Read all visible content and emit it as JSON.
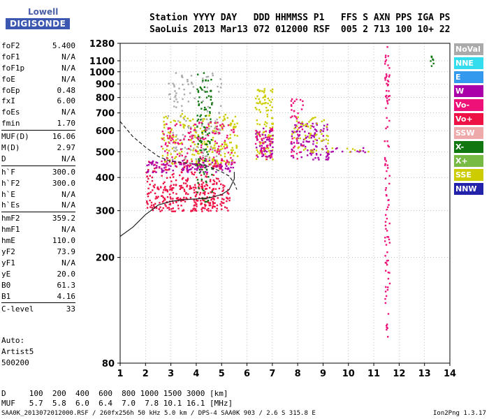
{
  "logo": {
    "line1": "Lowell",
    "line2": "DIGISONDE"
  },
  "header": {
    "line1": "Station YYYY DAY   DDD HHMMSS P1   FFS S AXN PPS IGA PS",
    "line2": "SaoLuis 2013 Mar13 072 012000 RSF  005 2 713 100 10+ 22"
  },
  "params": [
    {
      "name": "foF2",
      "value": "5.400"
    },
    {
      "name": "foF1",
      "value": "N/A"
    },
    {
      "name": "foF1p",
      "value": "N/A"
    },
    {
      "name": "foE",
      "value": "N/A"
    },
    {
      "name": "foEp",
      "value": "0.48"
    },
    {
      "name": "fxI",
      "value": "6.00"
    },
    {
      "name": "foEs",
      "value": "N/A"
    },
    {
      "name": "fmin",
      "value": "1.70"
    },
    {
      "name": "MUF(D)",
      "value": "16.06",
      "sep_before": true
    },
    {
      "name": "M(D)",
      "value": "2.97"
    },
    {
      "name": "D",
      "value": "N/A"
    },
    {
      "name": "h`F",
      "value": "300.0",
      "sep_before": true
    },
    {
      "name": "h`F2",
      "value": "300.0"
    },
    {
      "name": "h`E",
      "value": "N/A"
    },
    {
      "name": "h`Es",
      "value": "N/A"
    },
    {
      "name": "hmF2",
      "value": "359.2",
      "sep_before": true
    },
    {
      "name": "hmF1",
      "value": "N/A"
    },
    {
      "name": "hmE",
      "value": "110.0"
    },
    {
      "name": "yF2",
      "value": "73.9"
    },
    {
      "name": "yF1",
      "value": "N/A"
    },
    {
      "name": "yE",
      "value": "20.0"
    },
    {
      "name": "B0",
      "value": "61.3"
    },
    {
      "name": "B1",
      "value": "4.16"
    },
    {
      "name": "C-level",
      "value": "33",
      "sep_before": true
    }
  ],
  "auto": {
    "line1": "Auto:",
    "line2": "Artist5",
    "line3": "500200"
  },
  "footer": {
    "d_line": "D     100  200  400  600  800 1000 1500 3000 [km]",
    "muf_line": "MUF   5.7  5.8  6.0  6.4  7.0  7.8 10.1 16.1 [MHz]",
    "file_line": "SAA0K_2013072012000.RSF / 260fx256h 50 kHz 5.0 km / DPS-4 SAA0K 903 / 2.6 S 315.8 E",
    "version": "Ion2Png 1.3.17"
  },
  "legend": [
    {
      "label": "NoVal",
      "color": "#aaaaaa"
    },
    {
      "label": "NNE",
      "color": "#33ddee"
    },
    {
      "label": "E",
      "color": "#3399ee"
    },
    {
      "label": "W",
      "color": "#aa00aa"
    },
    {
      "label": "Vo-",
      "color": "#ee1177"
    },
    {
      "label": "Vo+",
      "color": "#ee1144"
    },
    {
      "label": "SSW",
      "color": "#eeaaaa"
    },
    {
      "label": "X-",
      "color": "#117711"
    },
    {
      "label": "X+",
      "color": "#77bb44"
    },
    {
      "label": "SSE",
      "color": "#cccc00"
    },
    {
      "label": "NNW",
      "color": "#2222aa"
    }
  ],
  "chart_data": {
    "type": "scatter",
    "xlim": [
      1,
      14
    ],
    "ylim": [
      80,
      1280
    ],
    "x_ticks": [
      1,
      2,
      3,
      4,
      5,
      6,
      7,
      8,
      9,
      10,
      11,
      12,
      13,
      14
    ],
    "y_ticks": [
      80,
      200,
      300,
      400,
      500,
      600,
      700,
      800,
      900,
      1000,
      1100,
      1280
    ],
    "y_scale": "log",
    "grid": true,
    "clusters": [
      {
        "x": [
          2.0,
          5.3
        ],
        "y": [
          300,
          380
        ],
        "color_key": "Vo+",
        "density": 0.55
      },
      {
        "x": [
          2.0,
          5.0
        ],
        "y": [
          380,
          470
        ],
        "color_key": "Vo+",
        "density": 0.25
      },
      {
        "x": [
          2.0,
          5.5
        ],
        "y": [
          420,
          470
        ],
        "color_key": "W",
        "density": 0.45
      },
      {
        "x": [
          2.6,
          5.6
        ],
        "y": [
          450,
          700
        ],
        "color_key": "SSE",
        "density": 0.25
      },
      {
        "x": [
          2.8,
          5.0
        ],
        "y": [
          470,
          1000
        ],
        "color_key": "NoVal",
        "density": 0.12
      },
      {
        "x": [
          4.0,
          4.6
        ],
        "y": [
          320,
          1000
        ],
        "color_key": "X-",
        "density": 0.25
      },
      {
        "x": [
          2.6,
          5.5
        ],
        "y": [
          440,
          650
        ],
        "color_key": "Vo-",
        "density": 0.2
      },
      {
        "x": [
          6.3,
          7.0
        ],
        "y": [
          470,
          870
        ],
        "color_key": "SSE",
        "density": 0.35
      },
      {
        "x": [
          6.3,
          7.0
        ],
        "y": [
          470,
          620
        ],
        "color_key": "W",
        "density": 0.4
      },
      {
        "x": [
          6.3,
          7.0
        ],
        "y": [
          470,
          620
        ],
        "color_key": "Vo-",
        "density": 0.3
      },
      {
        "x": [
          7.7,
          9.2
        ],
        "y": [
          470,
          650
        ],
        "color_key": "W",
        "density": 0.35
      },
      {
        "x": [
          7.7,
          9.2
        ],
        "y": [
          500,
          680
        ],
        "color_key": "SSE",
        "density": 0.2
      },
      {
        "x": [
          7.7,
          8.2
        ],
        "y": [
          470,
          820
        ],
        "color_key": "Vo-",
        "density": 0.2
      },
      {
        "x": [
          9.0,
          10.8
        ],
        "y": [
          500,
          520
        ],
        "color_key": "W",
        "density": 0.3
      },
      {
        "x": [
          9.0,
          10.8
        ],
        "y": [
          500,
          520
        ],
        "color_key": "SSE",
        "density": 0.2
      },
      {
        "x": [
          11.4,
          11.6
        ],
        "y": [
          100,
          1270
        ],
        "color_key": "Vo-",
        "density": 0.3
      },
      {
        "x": [
          13.2,
          13.35
        ],
        "y": [
          1050,
          1160
        ],
        "color_key": "X-",
        "density": 0.8
      }
    ],
    "curves": [
      {
        "name": "dashed",
        "style": "dashed",
        "points": [
          [
            1.0,
            650
          ],
          [
            1.5,
            570
          ],
          [
            2.0,
            520
          ],
          [
            2.5,
            480
          ],
          [
            3.0,
            460
          ],
          [
            3.5,
            455
          ],
          [
            4.0,
            450
          ],
          [
            4.5,
            440
          ],
          [
            5.0,
            420
          ],
          [
            5.3,
            405
          ],
          [
            5.5,
            380
          ],
          [
            5.6,
            360
          ]
        ]
      },
      {
        "name": "solid",
        "style": "solid",
        "points": [
          [
            1.0,
            240
          ],
          [
            1.5,
            260
          ],
          [
            2.0,
            290
          ],
          [
            2.5,
            315
          ],
          [
            3.0,
            325
          ],
          [
            3.5,
            330
          ],
          [
            4.0,
            332
          ],
          [
            4.5,
            335
          ],
          [
            5.0,
            345
          ],
          [
            5.3,
            360
          ],
          [
            5.5,
            395
          ],
          [
            5.5,
            420
          ]
        ]
      }
    ]
  }
}
